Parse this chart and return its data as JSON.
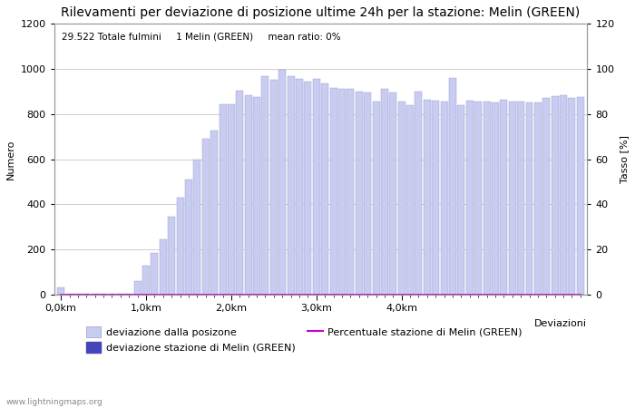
{
  "title": "Rilevamenti per deviazione di posizione ultime 24h per la stazione: Melin (GREEN)",
  "subtitle": "29.522 Totale fulmini     1 Melin (GREEN)     mean ratio: 0%",
  "ylabel_left": "Numero",
  "ylabel_right": "Tasso [%]",
  "xlabel_right": "Deviazioni",
  "watermark": "www.lightningmaps.org",
  "bar_values": [
    30,
    5,
    5,
    5,
    5,
    5,
    5,
    5,
    5,
    60,
    130,
    185,
    245,
    345,
    430,
    510,
    600,
    690,
    725,
    845,
    845,
    905,
    885,
    875,
    970,
    950,
    995,
    970,
    955,
    945,
    955,
    935,
    915,
    910,
    910,
    900,
    895,
    855,
    910,
    895,
    855,
    840,
    900,
    865,
    860,
    855,
    960,
    840,
    860,
    855,
    855,
    850,
    865,
    855,
    855,
    850,
    850,
    870,
    880,
    885,
    870,
    875
  ],
  "station_bar_values": [
    0,
    0,
    0,
    0,
    0,
    0,
    0,
    0,
    0,
    0,
    0,
    0,
    0,
    0,
    0,
    0,
    0,
    0,
    0,
    0,
    0,
    0,
    0,
    0,
    0,
    0,
    0,
    0,
    0,
    0,
    0,
    0,
    0,
    0,
    0,
    0,
    0,
    0,
    0,
    0,
    0,
    0,
    0,
    0,
    0,
    0,
    0,
    0,
    0,
    0,
    0,
    0,
    0,
    0,
    0,
    0,
    0,
    0,
    0,
    0,
    0,
    0
  ],
  "ratio_values": [
    0,
    0,
    0,
    0,
    0,
    0,
    0,
    0,
    0,
    0,
    0,
    0,
    0,
    0,
    0,
    0,
    0,
    0,
    0,
    0,
    0,
    0,
    0,
    0,
    0,
    0,
    0,
    0,
    0,
    0,
    0,
    0,
    0,
    0,
    0,
    0,
    0,
    0,
    0,
    0,
    0,
    0,
    0,
    0,
    0,
    0,
    0,
    0,
    0,
    0,
    0,
    0,
    0,
    0,
    0,
    0,
    0,
    0,
    0,
    0,
    0,
    0
  ],
  "ylim_left": [
    0,
    1200
  ],
  "ylim_right": [
    0,
    120
  ],
  "yticks_left": [
    0,
    200,
    400,
    600,
    800,
    1000,
    1200
  ],
  "yticks_right": [
    0,
    20,
    40,
    60,
    80,
    100,
    120
  ],
  "bar_color": "#c8ccf0",
  "bar_edge_color": "#9999cc",
  "station_bar_color": "#4444bb",
  "ratio_line_color": "#cc00cc",
  "background_color": "#ffffff",
  "grid_color": "#bbbbbb",
  "title_fontsize": 10,
  "subtitle_fontsize": 7.5,
  "axis_label_fontsize": 8,
  "tick_fontsize": 8,
  "legend_fontsize": 8
}
